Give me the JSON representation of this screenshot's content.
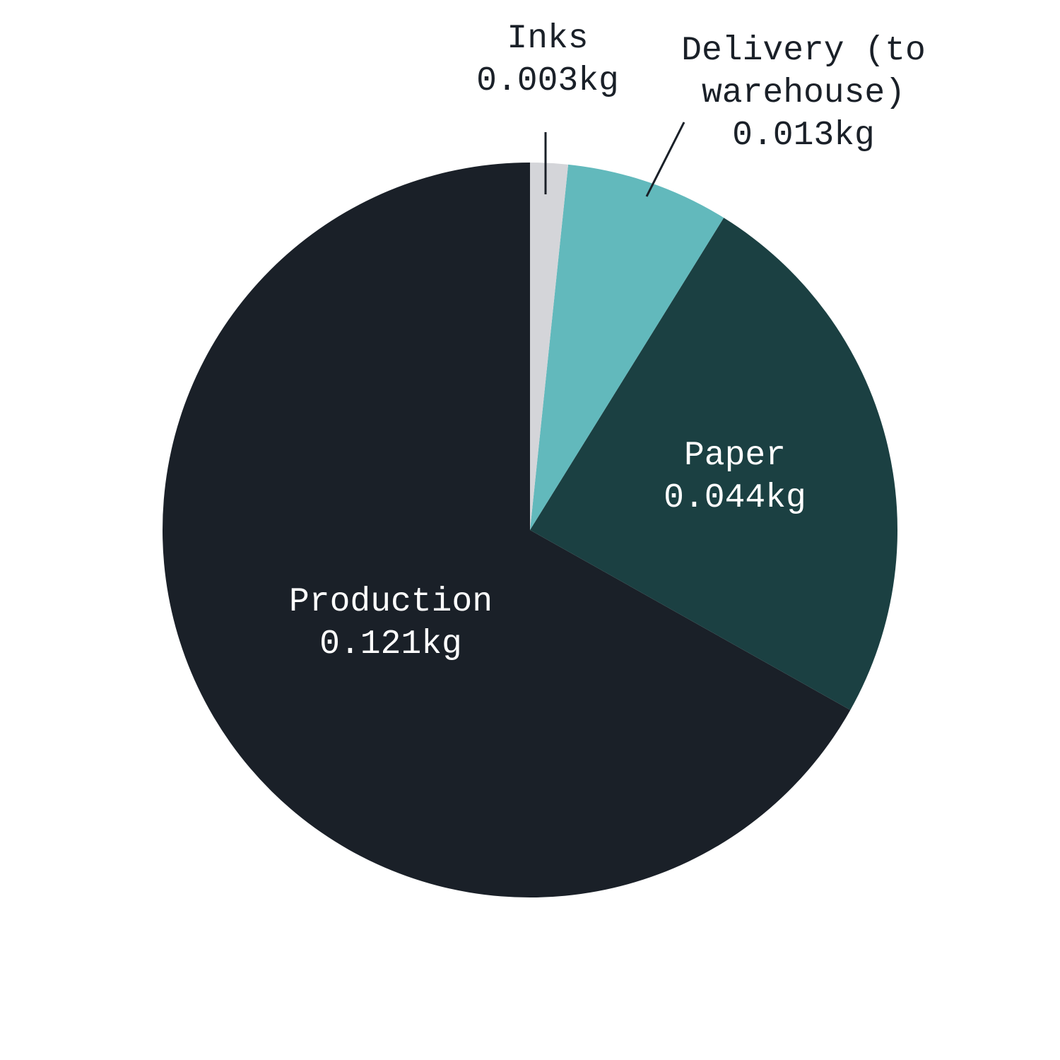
{
  "chart_data": {
    "type": "pie",
    "categories": [
      "Inks",
      "Delivery (to warehouse)",
      "Paper",
      "Production"
    ],
    "values": [
      0.003,
      0.013,
      0.044,
      0.121
    ],
    "value_labels": [
      "0.003kg",
      "0.013kg",
      "0.044kg",
      "0.121kg"
    ],
    "colors": [
      "#d4d5d9",
      "#62b9bc",
      "#1b4042",
      "#1a2028"
    ]
  }
}
